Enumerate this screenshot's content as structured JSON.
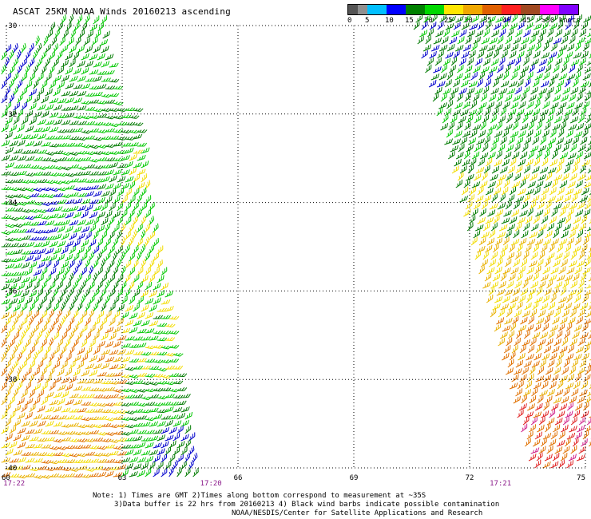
{
  "title": "ASCAT 25KM NOAA Winds 20160213 ascending",
  "legend": {
    "colors": [
      "#555555",
      "#909090",
      "#00bfff",
      "#0000ff",
      "#008000",
      "#00d800",
      "#ffe600",
      "#f0a800",
      "#e06000",
      "#ff2020",
      "#a04820",
      "#ff00ff",
      "#8000ff"
    ],
    "ticks": [
      "0",
      "5",
      "10",
      "15",
      "20",
      "25",
      "30",
      "35",
      "40",
      "45",
      ">50 knots"
    ]
  },
  "map": {
    "lon_range": [
      60,
      75
    ],
    "lat_range": [
      -30,
      -40
    ],
    "lon_labels": [
      "60",
      "63",
      "66",
      "69",
      "72",
      "75"
    ],
    "lat_labels": [
      "-30",
      "-32",
      "-34",
      "-36",
      "-38",
      "-40"
    ],
    "pass_times": [
      {
        "label": "17:22",
        "lon": 60.2
      },
      {
        "label": "17:20",
        "lon": 65.3
      },
      {
        "label": "17:21",
        "lon": 72.8
      }
    ],
    "swaths": [
      {
        "name": "west-swath",
        "speed_regions": [
          {
            "area": "north",
            "speed_kt": "10-20"
          },
          {
            "area": "center",
            "speed_kt": "10-20"
          },
          {
            "area": "south",
            "speed_kt": "20-30"
          }
        ]
      },
      {
        "name": "east-swath",
        "speed_regions": [
          {
            "area": "north",
            "speed_kt": "10-20"
          },
          {
            "area": "center",
            "speed_kt": "20-25"
          },
          {
            "area": "south",
            "speed_kt": "25-35"
          }
        ]
      }
    ]
  },
  "notes": {
    "line1": "Note: 1) Times are GMT 2)Times along bottom correspond to measurement at ~35S",
    "line2": "3)Data buffer is 22 hrs from 20160213 4) Black wind barbs indicate possible contamination",
    "line3": "NOAA/NESDIS/Center for Satellite Applications and Research"
  }
}
